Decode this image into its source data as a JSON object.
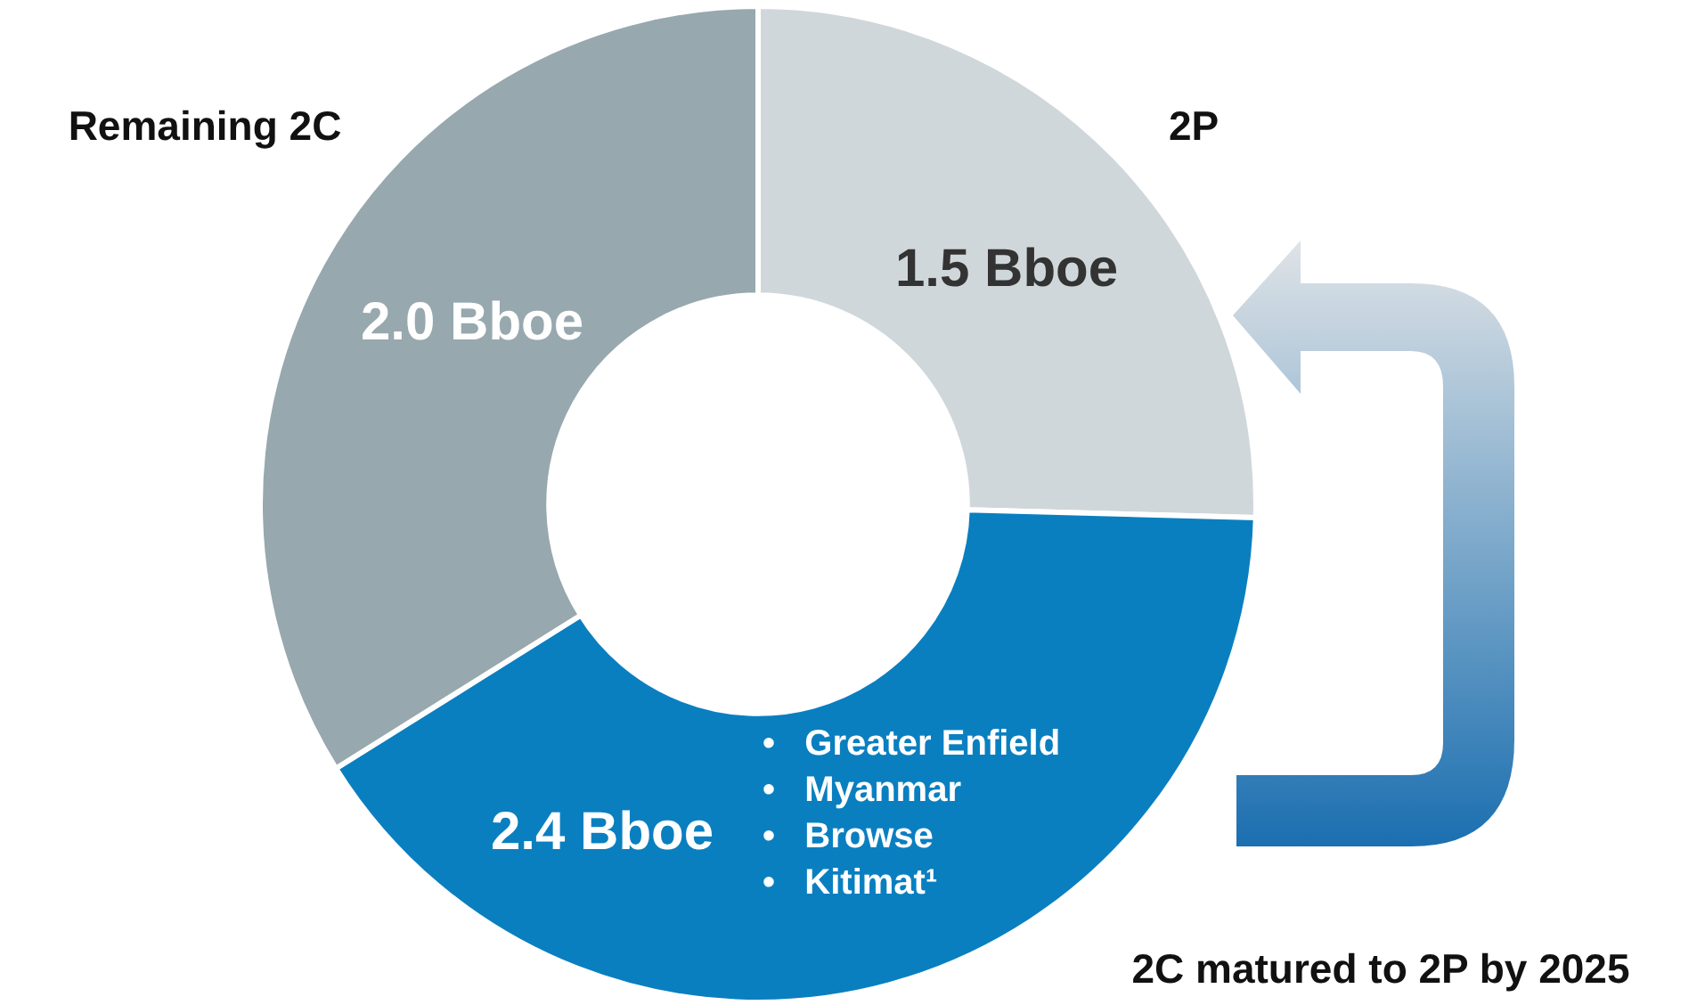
{
  "chart_data": {
    "type": "donut",
    "categories": [
      "2P",
      "2C matured to 2P by 2025",
      "Remaining 2C"
    ],
    "values": [
      1.5,
      2.4,
      2.0
    ],
    "colors": [
      "#d0d7db",
      "#0a7fc0",
      "#97a8ae"
    ],
    "value_labels": [
      "1.5 Bboe",
      "2.4 Bboe",
      "2.0 Bboe"
    ],
    "annotations": [
      "•   Greater Enfield",
      "•   Myanmar",
      "•   Browse",
      "•   Kitimat¹"
    ],
    "legend": false
  }
}
